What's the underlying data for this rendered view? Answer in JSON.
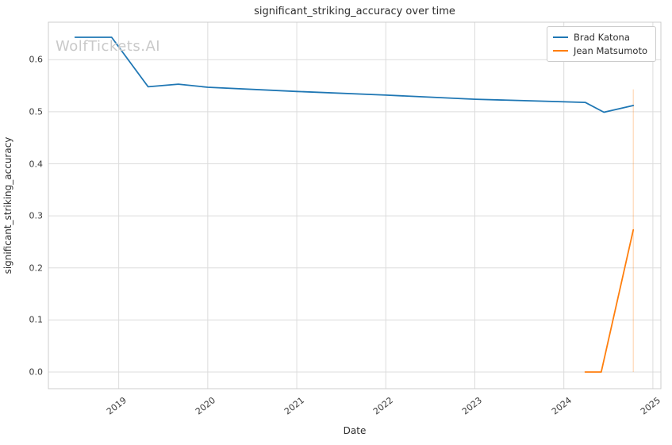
{
  "watermark": {
    "text": "WolfTickets.AI",
    "color": "#c9c9c9"
  },
  "chart_data": {
    "type": "line",
    "title": "significant_striking_accuracy over time",
    "xlabel": "Date",
    "ylabel": "significant_striking_accuracy",
    "xlim": [
      2018.21,
      2025.09
    ],
    "ylim": [
      -0.032,
      0.672
    ],
    "x_ticks": [
      2019,
      2020,
      2021,
      2022,
      2023,
      2024,
      2025
    ],
    "y_ticks": [
      0.0,
      0.1,
      0.2,
      0.3,
      0.4,
      0.5,
      0.6
    ],
    "grid": true,
    "grid_color": "#dcdcdc",
    "spine_color": "#cccccc",
    "legend_position": "upper right",
    "series": [
      {
        "name": "Brad Katona",
        "color": "#1f77b4",
        "points": [
          [
            2018.51,
            0.643
          ],
          [
            2018.92,
            0.643
          ],
          [
            2019.33,
            0.548
          ],
          [
            2019.67,
            0.553
          ],
          [
            2020.0,
            0.547
          ],
          [
            2021.0,
            0.539
          ],
          [
            2022.0,
            0.532
          ],
          [
            2023.0,
            0.524
          ],
          [
            2024.24,
            0.518
          ],
          [
            2024.45,
            0.499
          ],
          [
            2024.78,
            0.512
          ]
        ]
      },
      {
        "name": "Jean Matsumoto",
        "color": "#ff7f0e",
        "points": [
          [
            2024.24,
            0.0
          ],
          [
            2024.42,
            0.0
          ],
          [
            2024.78,
            0.273
          ]
        ]
      }
    ],
    "error_bar": {
      "series": "Jean Matsumoto",
      "x": 2024.78,
      "y_min": 0.0,
      "y_max": 0.543,
      "color": "#ff7f0e",
      "opacity": 0.3
    }
  }
}
